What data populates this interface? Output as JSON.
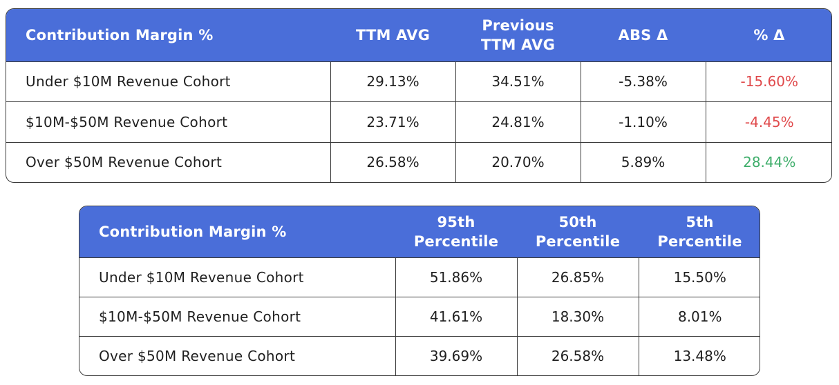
{
  "chart_data": [
    {
      "type": "table",
      "columns": [
        "Contribution Margin %",
        "TTM AVG",
        "Previous TTM AVG",
        "ABS Δ",
        "% Δ"
      ],
      "header": {
        "c0": "Contribution Margin %",
        "c1": "TTM AVG",
        "c2a": "Previous",
        "c2b": "TTM AVG",
        "c3": "ABS Δ",
        "c4": "% Δ"
      },
      "rows": [
        {
          "cohort": "Under $10M Revenue Cohort",
          "ttm": "29.13%",
          "prev": "34.51%",
          "abs": "-5.38%",
          "pct": "-15.60%"
        },
        {
          "cohort": "$10M-$50M Revenue Cohort",
          "ttm": "23.71%",
          "prev": "24.81%",
          "abs": "-1.10%",
          "pct": "-4.45%"
        },
        {
          "cohort": "Over $50M Revenue Cohort",
          "ttm": "26.58%",
          "prev": "20.70%",
          "abs": "5.89%",
          "pct": "28.44%"
        }
      ]
    },
    {
      "type": "table",
      "columns": [
        "Contribution Margin %",
        "95th Percentile",
        "50th Percentile",
        "5th Percentile"
      ],
      "header": {
        "c0": "Contribution Margin %",
        "c1a": "95th",
        "c1b": "Percentile",
        "c2a": "50th",
        "c2b": "Percentile",
        "c3a": "5th",
        "c3b": "Percentile"
      },
      "rows": [
        {
          "cohort": "Under $10M Revenue Cohort",
          "p95": "51.86%",
          "p50": "26.85%",
          "p5": "15.50%"
        },
        {
          "cohort": "$10M-$50M Revenue Cohort",
          "p95": "41.61%",
          "p50": "18.30%",
          "p5": "8.01%"
        },
        {
          "cohort": "Over $50M Revenue Cohort",
          "p95": "39.69%",
          "p50": "26.58%",
          "p5": "13.48%"
        }
      ]
    }
  ],
  "colors": {
    "header_bg": "#4a6ed9",
    "negative": "#e0494b",
    "positive": "#3fae6b",
    "border": "#3a3a3a"
  }
}
